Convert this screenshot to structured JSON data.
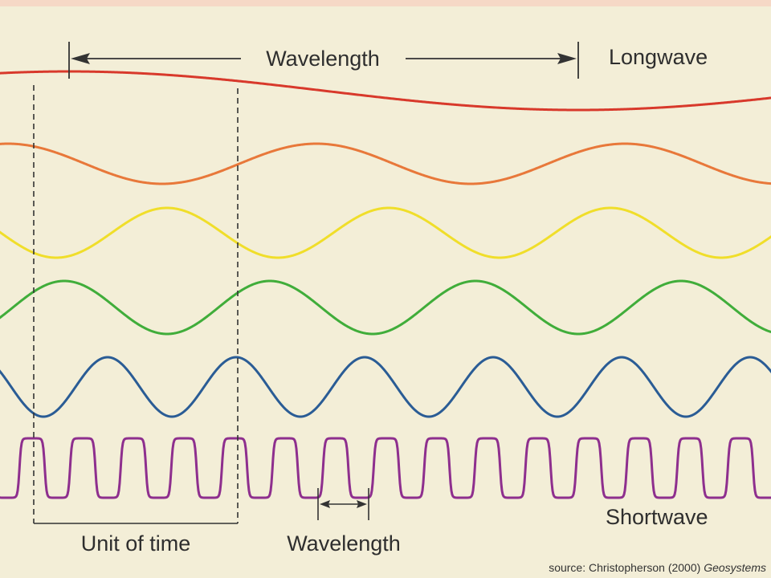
{
  "labels": {
    "top_wavelength": "Wavelength",
    "longwave": "Longwave",
    "shortwave": "Shortwave",
    "unit_of_time": "Unit of time",
    "bottom_wavelength": "Wavelength"
  },
  "source": {
    "prefix": "source: Christopherson (2000) ",
    "title": "Geosystems"
  },
  "waves": [
    {
      "name": "red",
      "color": "#d8392b"
    },
    {
      "name": "orange",
      "color": "#e8783a"
    },
    {
      "name": "yellow",
      "color": "#f0de2a"
    },
    {
      "name": "green",
      "color": "#40ad3a"
    },
    {
      "name": "blue",
      "color": "#2a5c95"
    },
    {
      "name": "purple",
      "color": "#8e2f8e"
    }
  ],
  "colors": {
    "background": "#f3eed7",
    "annotation": "#333333",
    "top_band": "#f6d8c6"
  }
}
